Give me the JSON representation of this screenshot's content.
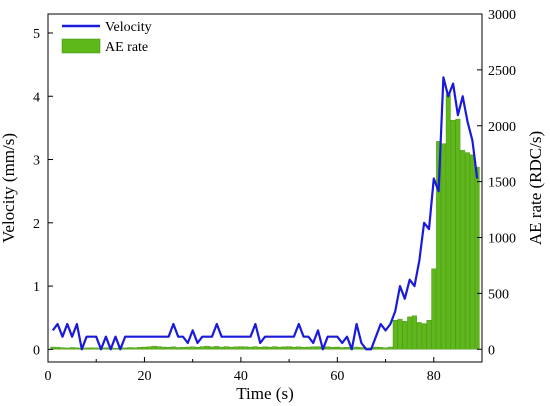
{
  "chart_data": {
    "type": "bar+line",
    "xlabel": "Time (s)",
    "ylabel_left": "Velocity (mm/s)",
    "ylabel_right": "AE rate (RDC/s)",
    "xlim": [
      0,
      90
    ],
    "ylim_left": [
      -0.2,
      5.3
    ],
    "ylim_right": [
      -114,
      3000
    ],
    "x_ticks": [
      0,
      20,
      40,
      60,
      80
    ],
    "y_left_ticks": [
      0,
      1,
      2,
      3,
      4,
      5
    ],
    "y_right_ticks": [
      0,
      500,
      1000,
      1500,
      2000,
      2500,
      3000
    ],
    "legend": {
      "position": "top-left",
      "entries": [
        "Velocity",
        "AE rate"
      ]
    },
    "grid": false,
    "series": [
      {
        "name": "Velocity",
        "kind": "line",
        "axis": "left",
        "color": "#1a1adb",
        "x": [
          1,
          2,
          3,
          4,
          5,
          6,
          7,
          8,
          9,
          10,
          11,
          12,
          13,
          14,
          15,
          16,
          17,
          18,
          19,
          20,
          21,
          22,
          23,
          24,
          25,
          26,
          27,
          28,
          29,
          30,
          31,
          32,
          33,
          34,
          35,
          36,
          37,
          38,
          39,
          40,
          41,
          42,
          43,
          44,
          45,
          46,
          47,
          48,
          49,
          50,
          51,
          52,
          53,
          54,
          55,
          56,
          57,
          58,
          59,
          60,
          61,
          62,
          63,
          64,
          65,
          66,
          67,
          68,
          69,
          70,
          71,
          72,
          73,
          74,
          75,
          76,
          77,
          78,
          79,
          80,
          81,
          82,
          83,
          84,
          85,
          86,
          87,
          88,
          89
        ],
        "values": [
          0.3,
          0.4,
          0.2,
          0.4,
          0.2,
          0.4,
          0.0,
          0.2,
          0.2,
          0.2,
          0.0,
          0.2,
          0.0,
          0.2,
          0.0,
          0.2,
          0.2,
          0.2,
          0.2,
          0.2,
          0.2,
          0.2,
          0.2,
          0.2,
          0.2,
          0.4,
          0.2,
          0.2,
          0.1,
          0.3,
          0.1,
          0.2,
          0.2,
          0.2,
          0.4,
          0.2,
          0.2,
          0.2,
          0.2,
          0.2,
          0.2,
          0.2,
          0.4,
          0.1,
          0.2,
          0.2,
          0.2,
          0.2,
          0.2,
          0.2,
          0.2,
          0.4,
          0.2,
          0.2,
          0.1,
          0.3,
          0.0,
          0.2,
          0.2,
          0.2,
          0.1,
          0.2,
          0.0,
          0.4,
          0.1,
          0.0,
          0.0,
          0.2,
          0.4,
          0.3,
          0.4,
          0.6,
          1.0,
          0.8,
          1.1,
          1.0,
          1.4,
          2.0,
          1.9,
          2.7,
          2.5,
          4.3,
          4.0,
          4.2,
          3.7,
          4.0,
          3.6,
          3.3,
          2.7
        ]
      },
      {
        "name": "AE rate",
        "kind": "bar",
        "axis": "right",
        "color": "#5fb819",
        "x": [
          1,
          2,
          3,
          4,
          5,
          6,
          7,
          8,
          9,
          10,
          11,
          12,
          13,
          14,
          15,
          16,
          17,
          18,
          19,
          20,
          21,
          22,
          23,
          24,
          25,
          26,
          27,
          28,
          29,
          30,
          31,
          32,
          33,
          34,
          35,
          36,
          37,
          38,
          39,
          40,
          41,
          42,
          43,
          44,
          45,
          46,
          47,
          48,
          49,
          50,
          51,
          52,
          53,
          54,
          55,
          56,
          57,
          58,
          59,
          60,
          61,
          62,
          63,
          64,
          65,
          66,
          67,
          68,
          69,
          70,
          71,
          72,
          73,
          74,
          75,
          76,
          77,
          78,
          79,
          80,
          81,
          82,
          83,
          84,
          85,
          86,
          87,
          88,
          89
        ],
        "values": [
          20,
          18,
          15,
          12,
          16,
          14,
          10,
          12,
          14,
          12,
          10,
          14,
          12,
          10,
          14,
          12,
          16,
          14,
          18,
          20,
          22,
          28,
          24,
          20,
          18,
          22,
          16,
          18,
          20,
          22,
          18,
          24,
          28,
          22,
          26,
          20,
          24,
          20,
          22,
          24,
          22,
          20,
          24,
          18,
          22,
          20,
          24,
          20,
          22,
          24,
          20,
          22,
          18,
          20,
          22,
          24,
          20,
          22,
          18,
          20,
          16,
          18,
          14,
          20,
          16,
          12,
          14,
          20,
          18,
          14,
          20,
          260,
          270,
          250,
          290,
          300,
          240,
          230,
          260,
          720,
          1860,
          1840,
          2280,
          2050,
          2060,
          1780,
          1760,
          1740,
          1630
        ]
      }
    ]
  }
}
